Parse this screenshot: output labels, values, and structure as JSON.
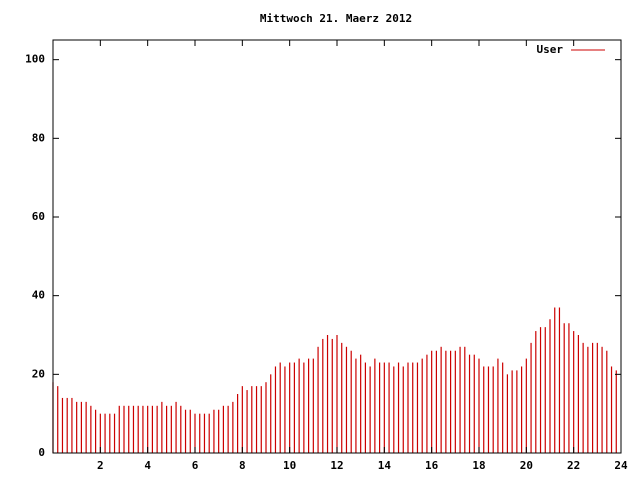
{
  "chart_data": {
    "type": "impulses",
    "title": "Mittwoch 21. Maerz 2012",
    "x": [
      0,
      0.2,
      0.4,
      0.6,
      0.8,
      1,
      1.2,
      1.4,
      1.6,
      1.8,
      2,
      2.2,
      2.4,
      2.6,
      2.8,
      3,
      3.2,
      3.4,
      3.6,
      3.8,
      4,
      4.2,
      4.4,
      4.6,
      4.8,
      5,
      5.2,
      5.4,
      5.6,
      5.8,
      6,
      6.2,
      6.4,
      6.6,
      6.8,
      7,
      7.2,
      7.4,
      7.6,
      7.8,
      8,
      8.2,
      8.4,
      8.6,
      8.8,
      9,
      9.2,
      9.4,
      9.6,
      9.8,
      10,
      10.2,
      10.4,
      10.6,
      10.8,
      11,
      11.2,
      11.4,
      11.6,
      11.8,
      12,
      12.2,
      12.4,
      12.6,
      12.8,
      13,
      13.2,
      13.4,
      13.6,
      13.8,
      14,
      14.2,
      14.4,
      14.6,
      14.8,
      15,
      15.2,
      15.4,
      15.6,
      15.8,
      16,
      16.2,
      16.4,
      16.6,
      16.8,
      17,
      17.2,
      17.4,
      17.6,
      17.8,
      18,
      18.2,
      18.4,
      18.6,
      18.8,
      19,
      19.2,
      19.4,
      19.6,
      19.8,
      20,
      20.2,
      20.4,
      20.6,
      20.8,
      21,
      21.2,
      21.4,
      21.6,
      21.8,
      22,
      22.2,
      22.4,
      22.6,
      22.8,
      23,
      23.2,
      23.4,
      23.6,
      23.8
    ],
    "series": [
      {
        "name": "User",
        "color": "#cc0000",
        "values": [
          18,
          17,
          14,
          14,
          14,
          13,
          13,
          13,
          12,
          11,
          10,
          10,
          10,
          10,
          12,
          12,
          12,
          12,
          12,
          12,
          12,
          12,
          12,
          13,
          12,
          12,
          13,
          12,
          11,
          11,
          10,
          10,
          10,
          10,
          11,
          11,
          12,
          12,
          13,
          15,
          17,
          16,
          17,
          17,
          17,
          18,
          20,
          22,
          23,
          22,
          23,
          23,
          24,
          23,
          24,
          24,
          27,
          29,
          30,
          29,
          30,
          28,
          27,
          26,
          24,
          25,
          23,
          22,
          24,
          23,
          23,
          23,
          22,
          23,
          22,
          23,
          23,
          23,
          24,
          25,
          26,
          26,
          27,
          26,
          26,
          26,
          27,
          27,
          25,
          25,
          24,
          22,
          22,
          22,
          24,
          23,
          20,
          21,
          21,
          22,
          24,
          28,
          31,
          32,
          32,
          34,
          37,
          37,
          33,
          33,
          31,
          30,
          28,
          27,
          28,
          28,
          27,
          26,
          22,
          21
        ]
      }
    ],
    "xlim": [
      0,
      24
    ],
    "xticks": [
      2,
      4,
      6,
      8,
      10,
      12,
      14,
      16,
      18,
      20,
      22,
      24
    ],
    "ylim": [
      0,
      105
    ],
    "yticks": [
      0,
      20,
      40,
      60,
      80,
      100
    ],
    "legend": "upper right"
  }
}
